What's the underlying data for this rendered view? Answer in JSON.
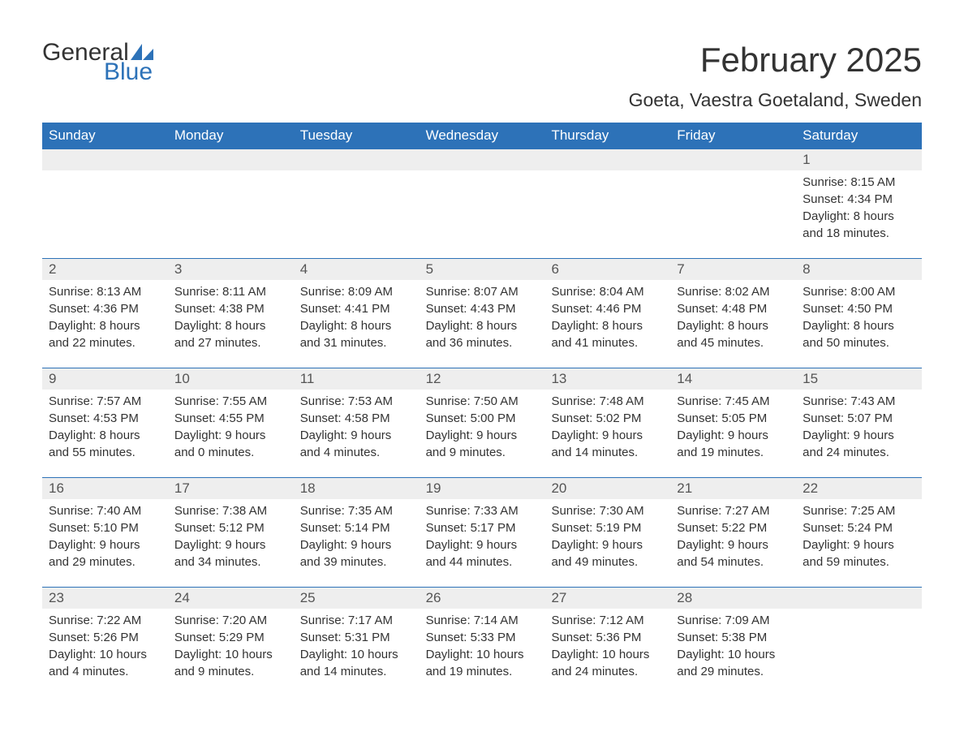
{
  "logo": {
    "word1": "General",
    "word2": "Blue"
  },
  "title": "February 2025",
  "subtitle": "Goeta, Vaestra Goetaland, Sweden",
  "colors": {
    "header_bg": "#2d72b8",
    "header_text": "#ffffff",
    "daynum_bg": "#eeeeee",
    "border": "#2d72b8",
    "text": "#333333"
  },
  "day_headers": [
    "Sunday",
    "Monday",
    "Tuesday",
    "Wednesday",
    "Thursday",
    "Friday",
    "Saturday"
  ],
  "weeks": [
    [
      null,
      null,
      null,
      null,
      null,
      null,
      {
        "n": "1",
        "sunrise": "8:15 AM",
        "sunset": "4:34 PM",
        "daylight": "8 hours and 18 minutes."
      }
    ],
    [
      {
        "n": "2",
        "sunrise": "8:13 AM",
        "sunset": "4:36 PM",
        "daylight": "8 hours and 22 minutes."
      },
      {
        "n": "3",
        "sunrise": "8:11 AM",
        "sunset": "4:38 PM",
        "daylight": "8 hours and 27 minutes."
      },
      {
        "n": "4",
        "sunrise": "8:09 AM",
        "sunset": "4:41 PM",
        "daylight": "8 hours and 31 minutes."
      },
      {
        "n": "5",
        "sunrise": "8:07 AM",
        "sunset": "4:43 PM",
        "daylight": "8 hours and 36 minutes."
      },
      {
        "n": "6",
        "sunrise": "8:04 AM",
        "sunset": "4:46 PM",
        "daylight": "8 hours and 41 minutes."
      },
      {
        "n": "7",
        "sunrise": "8:02 AM",
        "sunset": "4:48 PM",
        "daylight": "8 hours and 45 minutes."
      },
      {
        "n": "8",
        "sunrise": "8:00 AM",
        "sunset": "4:50 PM",
        "daylight": "8 hours and 50 minutes."
      }
    ],
    [
      {
        "n": "9",
        "sunrise": "7:57 AM",
        "sunset": "4:53 PM",
        "daylight": "8 hours and 55 minutes."
      },
      {
        "n": "10",
        "sunrise": "7:55 AM",
        "sunset": "4:55 PM",
        "daylight": "9 hours and 0 minutes."
      },
      {
        "n": "11",
        "sunrise": "7:53 AM",
        "sunset": "4:58 PM",
        "daylight": "9 hours and 4 minutes."
      },
      {
        "n": "12",
        "sunrise": "7:50 AM",
        "sunset": "5:00 PM",
        "daylight": "9 hours and 9 minutes."
      },
      {
        "n": "13",
        "sunrise": "7:48 AM",
        "sunset": "5:02 PM",
        "daylight": "9 hours and 14 minutes."
      },
      {
        "n": "14",
        "sunrise": "7:45 AM",
        "sunset": "5:05 PM",
        "daylight": "9 hours and 19 minutes."
      },
      {
        "n": "15",
        "sunrise": "7:43 AM",
        "sunset": "5:07 PM",
        "daylight": "9 hours and 24 minutes."
      }
    ],
    [
      {
        "n": "16",
        "sunrise": "7:40 AM",
        "sunset": "5:10 PM",
        "daylight": "9 hours and 29 minutes."
      },
      {
        "n": "17",
        "sunrise": "7:38 AM",
        "sunset": "5:12 PM",
        "daylight": "9 hours and 34 minutes."
      },
      {
        "n": "18",
        "sunrise": "7:35 AM",
        "sunset": "5:14 PM",
        "daylight": "9 hours and 39 minutes."
      },
      {
        "n": "19",
        "sunrise": "7:33 AM",
        "sunset": "5:17 PM",
        "daylight": "9 hours and 44 minutes."
      },
      {
        "n": "20",
        "sunrise": "7:30 AM",
        "sunset": "5:19 PM",
        "daylight": "9 hours and 49 minutes."
      },
      {
        "n": "21",
        "sunrise": "7:27 AM",
        "sunset": "5:22 PM",
        "daylight": "9 hours and 54 minutes."
      },
      {
        "n": "22",
        "sunrise": "7:25 AM",
        "sunset": "5:24 PM",
        "daylight": "9 hours and 59 minutes."
      }
    ],
    [
      {
        "n": "23",
        "sunrise": "7:22 AM",
        "sunset": "5:26 PM",
        "daylight": "10 hours and 4 minutes."
      },
      {
        "n": "24",
        "sunrise": "7:20 AM",
        "sunset": "5:29 PM",
        "daylight": "10 hours and 9 minutes."
      },
      {
        "n": "25",
        "sunrise": "7:17 AM",
        "sunset": "5:31 PM",
        "daylight": "10 hours and 14 minutes."
      },
      {
        "n": "26",
        "sunrise": "7:14 AM",
        "sunset": "5:33 PM",
        "daylight": "10 hours and 19 minutes."
      },
      {
        "n": "27",
        "sunrise": "7:12 AM",
        "sunset": "5:36 PM",
        "daylight": "10 hours and 24 minutes."
      },
      {
        "n": "28",
        "sunrise": "7:09 AM",
        "sunset": "5:38 PM",
        "daylight": "10 hours and 29 minutes."
      },
      null
    ]
  ],
  "labels": {
    "sunrise": "Sunrise:",
    "sunset": "Sunset:",
    "daylight": "Daylight:"
  }
}
